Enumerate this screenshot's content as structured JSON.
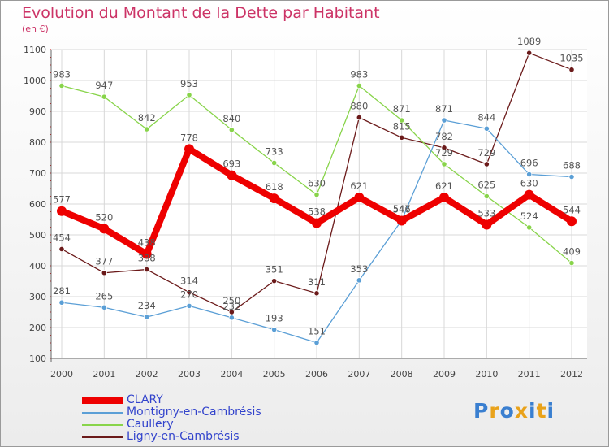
{
  "chart_data": {
    "type": "line",
    "title": "Evolution du Montant de la Dette par Habitant",
    "subtitle": "(en €)",
    "xlabel": "",
    "ylabel": "",
    "ylim": [
      100,
      1100
    ],
    "yticks": [
      100,
      200,
      300,
      400,
      500,
      600,
      700,
      800,
      900,
      1000,
      1100
    ],
    "categories": [
      "2000",
      "2001",
      "2002",
      "2003",
      "2004",
      "2005",
      "2006",
      "2007",
      "2008",
      "2009",
      "2010",
      "2011",
      "2012"
    ],
    "grid": true,
    "legend_position": "bottom-left",
    "series": [
      {
        "name": "CLARY",
        "color": "#ee0000",
        "values": [
          577,
          520,
          438,
          778,
          693,
          618,
          538,
          621,
          546,
          621,
          533,
          630,
          544
        ]
      },
      {
        "name": "Montigny-en-Cambrésis",
        "color": "#5b9fd6",
        "values": [
          281,
          265,
          234,
          270,
          232,
          193,
          151,
          353,
          547,
          871,
          844,
          696,
          688
        ]
      },
      {
        "name": "Caullery",
        "color": "#88d44a",
        "values": [
          983,
          947,
          842,
          953,
          840,
          733,
          630,
          983,
          871,
          729,
          625,
          524,
          409
        ]
      },
      {
        "name": "Ligny-en-Cambrésis",
        "color": "#6b1a1a",
        "values": [
          454,
          377,
          388,
          314,
          250,
          351,
          311,
          880,
          815,
          782,
          729,
          1089,
          1035
        ]
      }
    ]
  },
  "logo": {
    "letters": [
      "P",
      "r",
      "o",
      "x",
      "i",
      "t",
      "i"
    ],
    "colors": [
      "#3a7fd0",
      "#e9a21a",
      "#3a7fd0",
      "#e9a21a",
      "#3a7fd0",
      "#e9a21a",
      "#3a7fd0"
    ]
  }
}
